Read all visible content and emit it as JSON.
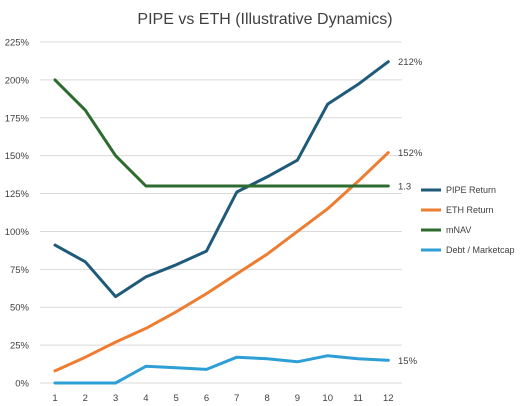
{
  "chart_data": {
    "type": "line",
    "title": "PIPE vs ETH (Illustrative Dynamics)",
    "xlabel": "",
    "ylabel": "",
    "x": [
      1,
      2,
      3,
      4,
      5,
      6,
      7,
      8,
      9,
      10,
      11,
      12
    ],
    "ylim": [
      0,
      2.25
    ],
    "y_ticks": [
      "0%",
      "25%",
      "50%",
      "75%",
      "100%",
      "125%",
      "150%",
      "175%",
      "200%",
      "225%"
    ],
    "grid": true,
    "legend_position": "right",
    "series": [
      {
        "name": "PIPE Return",
        "color": "#1f5a7a",
        "end_label": "212%",
        "values": [
          0.91,
          0.8,
          0.57,
          0.7,
          0.78,
          0.87,
          1.26,
          1.36,
          1.47,
          1.84,
          1.97,
          2.12
        ]
      },
      {
        "name": "ETH Return",
        "color": "#ed7d31",
        "end_label": "152%",
        "values": [
          0.08,
          0.17,
          0.27,
          0.36,
          0.47,
          0.59,
          0.72,
          0.85,
          1.0,
          1.15,
          1.33,
          1.52
        ]
      },
      {
        "name": "mNAV",
        "color": "#2e6b2e",
        "end_label": "1.3",
        "values": [
          2.0,
          1.8,
          1.5,
          1.3,
          1.3,
          1.3,
          1.3,
          1.3,
          1.3,
          1.3,
          1.3,
          1.3
        ]
      },
      {
        "name": "Debt / Marketcap",
        "color": "#2e9fd6",
        "end_label": "15%",
        "values": [
          0.0,
          0.0,
          0.0,
          0.11,
          0.1,
          0.09,
          0.17,
          0.16,
          0.14,
          0.18,
          0.16,
          0.15
        ]
      }
    ]
  }
}
